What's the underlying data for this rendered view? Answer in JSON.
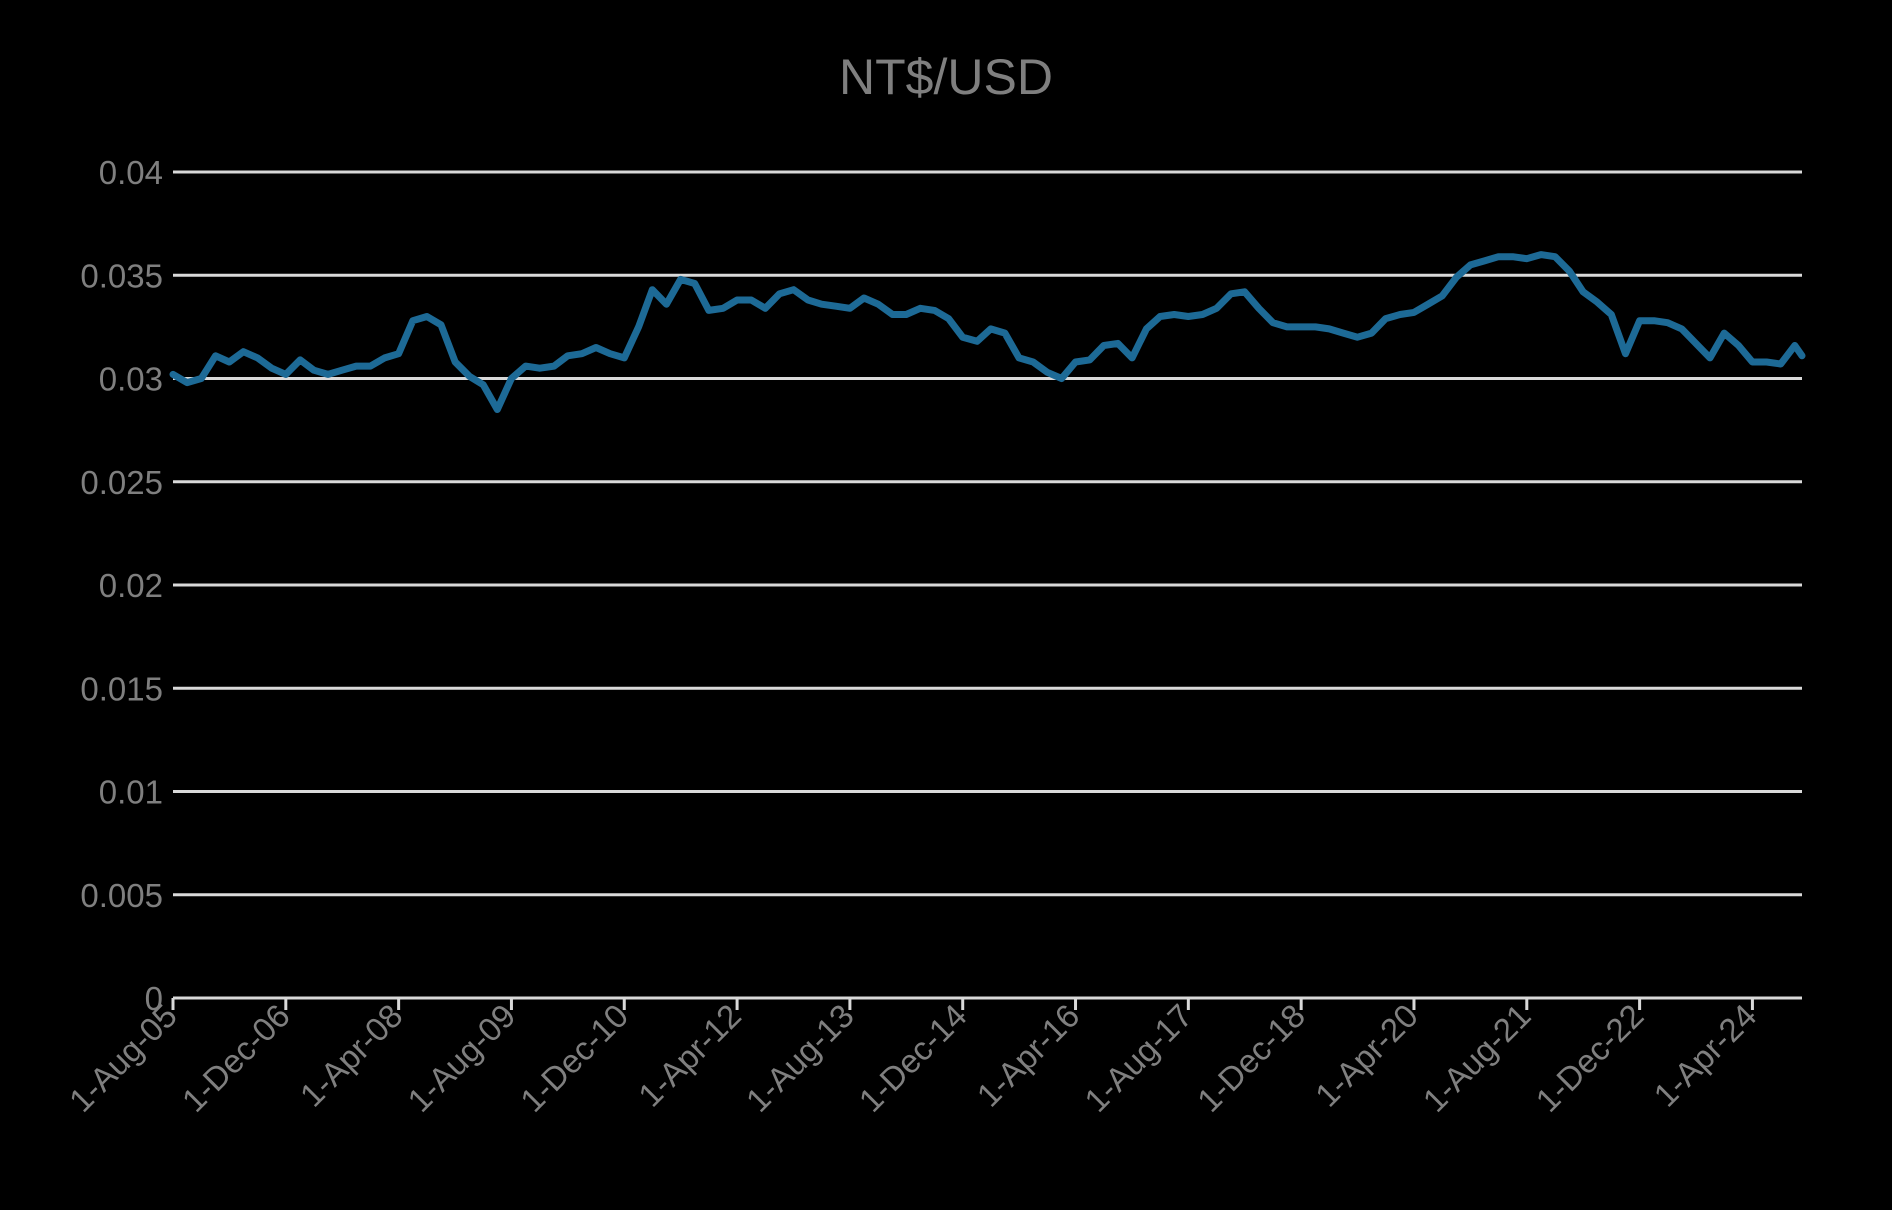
{
  "chart_data": {
    "type": "line",
    "title": "NT$/USD",
    "xlabel": "",
    "ylabel": "",
    "ylim": [
      0,
      0.04
    ],
    "x_range": [
      "2005-08-01",
      "2024-11-01"
    ],
    "grid": true,
    "legend": "none",
    "colors": {
      "background": "#000000",
      "line": "#1d6a96",
      "grid": "#d9d9d9",
      "axis": "#d9d9d9",
      "text": "#7f7f7f"
    },
    "y_ticks": [
      {
        "value": 0,
        "label": "0"
      },
      {
        "value": 0.005,
        "label": "0.005"
      },
      {
        "value": 0.01,
        "label": "0.01"
      },
      {
        "value": 0.015,
        "label": "0.015"
      },
      {
        "value": 0.02,
        "label": "0.02"
      },
      {
        "value": 0.025,
        "label": "0.025"
      },
      {
        "value": 0.03,
        "label": "0.03"
      },
      {
        "value": 0.035,
        "label": "0.035"
      },
      {
        "value": 0.04,
        "label": "0.04"
      }
    ],
    "x_ticks": [
      {
        "value": "2005-08-01",
        "label": "1-Aug-05"
      },
      {
        "value": "2006-12-01",
        "label": "1-Dec-06"
      },
      {
        "value": "2008-04-01",
        "label": "1-Apr-08"
      },
      {
        "value": "2009-08-01",
        "label": "1-Aug-09"
      },
      {
        "value": "2010-12-01",
        "label": "1-Dec-10"
      },
      {
        "value": "2012-04-01",
        "label": "1-Apr-12"
      },
      {
        "value": "2013-08-01",
        "label": "1-Aug-13"
      },
      {
        "value": "2014-12-01",
        "label": "1-Dec-14"
      },
      {
        "value": "2016-04-01",
        "label": "1-Apr-16"
      },
      {
        "value": "2017-08-01",
        "label": "1-Aug-17"
      },
      {
        "value": "2018-12-01",
        "label": "1-Dec-18"
      },
      {
        "value": "2020-04-01",
        "label": "1-Apr-20"
      },
      {
        "value": "2021-08-01",
        "label": "1-Aug-21"
      },
      {
        "value": "2022-12-01",
        "label": "1-Dec-22"
      },
      {
        "value": "2024-04-01",
        "label": "1-Apr-24"
      }
    ],
    "series": [
      {
        "points": [
          [
            "2005-08-01",
            0.0302
          ],
          [
            "2005-10-01",
            0.0298
          ],
          [
            "2005-12-01",
            0.03
          ],
          [
            "2006-02-01",
            0.0311
          ],
          [
            "2006-04-01",
            0.0308
          ],
          [
            "2006-06-01",
            0.0313
          ],
          [
            "2006-08-01",
            0.031
          ],
          [
            "2006-10-01",
            0.0305
          ],
          [
            "2006-12-01",
            0.0302
          ],
          [
            "2007-02-01",
            0.0309
          ],
          [
            "2007-04-01",
            0.0304
          ],
          [
            "2007-06-01",
            0.0302
          ],
          [
            "2007-08-01",
            0.0304
          ],
          [
            "2007-10-01",
            0.0306
          ],
          [
            "2007-12-01",
            0.0306
          ],
          [
            "2008-02-01",
            0.031
          ],
          [
            "2008-04-01",
            0.0312
          ],
          [
            "2008-06-01",
            0.0328
          ],
          [
            "2008-08-01",
            0.033
          ],
          [
            "2008-10-01",
            0.0326
          ],
          [
            "2008-12-01",
            0.0308
          ],
          [
            "2009-02-01",
            0.0301
          ],
          [
            "2009-04-01",
            0.0297
          ],
          [
            "2009-06-01",
            0.0285
          ],
          [
            "2009-08-01",
            0.03
          ],
          [
            "2009-10-01",
            0.0306
          ],
          [
            "2009-12-01",
            0.0305
          ],
          [
            "2010-02-01",
            0.0306
          ],
          [
            "2010-04-01",
            0.0311
          ],
          [
            "2010-06-01",
            0.0312
          ],
          [
            "2010-08-01",
            0.0315
          ],
          [
            "2010-10-01",
            0.0312
          ],
          [
            "2010-12-01",
            0.031
          ],
          [
            "2011-02-01",
            0.0325
          ],
          [
            "2011-04-01",
            0.0343
          ],
          [
            "2011-06-01",
            0.0336
          ],
          [
            "2011-08-01",
            0.0348
          ],
          [
            "2011-10-01",
            0.0346
          ],
          [
            "2011-12-01",
            0.0333
          ],
          [
            "2012-02-01",
            0.0334
          ],
          [
            "2012-04-01",
            0.0338
          ],
          [
            "2012-06-01",
            0.0338
          ],
          [
            "2012-08-01",
            0.0334
          ],
          [
            "2012-10-01",
            0.0341
          ],
          [
            "2012-12-01",
            0.0343
          ],
          [
            "2013-02-01",
            0.0338
          ],
          [
            "2013-04-01",
            0.0336
          ],
          [
            "2013-06-01",
            0.0335
          ],
          [
            "2013-08-01",
            0.0334
          ],
          [
            "2013-10-01",
            0.0339
          ],
          [
            "2013-12-01",
            0.0336
          ],
          [
            "2014-02-01",
            0.0331
          ],
          [
            "2014-04-01",
            0.0331
          ],
          [
            "2014-06-01",
            0.0334
          ],
          [
            "2014-08-01",
            0.0333
          ],
          [
            "2014-10-01",
            0.0329
          ],
          [
            "2014-12-01",
            0.032
          ],
          [
            "2015-02-01",
            0.0318
          ],
          [
            "2015-04-01",
            0.0324
          ],
          [
            "2015-06-01",
            0.0322
          ],
          [
            "2015-08-01",
            0.031
          ],
          [
            "2015-10-01",
            0.0308
          ],
          [
            "2015-12-01",
            0.0303
          ],
          [
            "2016-02-01",
            0.03
          ],
          [
            "2016-04-01",
            0.0308
          ],
          [
            "2016-06-01",
            0.0309
          ],
          [
            "2016-08-01",
            0.0316
          ],
          [
            "2016-10-01",
            0.0317
          ],
          [
            "2016-12-01",
            0.031
          ],
          [
            "2017-02-01",
            0.0324
          ],
          [
            "2017-04-01",
            0.033
          ],
          [
            "2017-06-01",
            0.0331
          ],
          [
            "2017-08-01",
            0.033
          ],
          [
            "2017-10-01",
            0.0331
          ],
          [
            "2017-12-01",
            0.0334
          ],
          [
            "2018-02-01",
            0.0341
          ],
          [
            "2018-04-01",
            0.0342
          ],
          [
            "2018-06-01",
            0.0334
          ],
          [
            "2018-08-01",
            0.0327
          ],
          [
            "2018-10-01",
            0.0325
          ],
          [
            "2018-12-01",
            0.0325
          ],
          [
            "2019-02-01",
            0.0325
          ],
          [
            "2019-04-01",
            0.0324
          ],
          [
            "2019-06-01",
            0.0322
          ],
          [
            "2019-08-01",
            0.032
          ],
          [
            "2019-10-01",
            0.0322
          ],
          [
            "2019-12-01",
            0.0329
          ],
          [
            "2020-02-01",
            0.0331
          ],
          [
            "2020-04-01",
            0.0332
          ],
          [
            "2020-06-01",
            0.0336
          ],
          [
            "2020-08-01",
            0.034
          ],
          [
            "2020-10-01",
            0.0349
          ],
          [
            "2020-12-01",
            0.0355
          ],
          [
            "2021-02-01",
            0.0357
          ],
          [
            "2021-04-01",
            0.0359
          ],
          [
            "2021-06-01",
            0.0359
          ],
          [
            "2021-08-01",
            0.0358
          ],
          [
            "2021-10-01",
            0.036
          ],
          [
            "2021-12-01",
            0.0359
          ],
          [
            "2022-02-01",
            0.0352
          ],
          [
            "2022-04-01",
            0.0342
          ],
          [
            "2022-06-01",
            0.0337
          ],
          [
            "2022-08-01",
            0.0331
          ],
          [
            "2022-10-01",
            0.0312
          ],
          [
            "2022-12-01",
            0.0328
          ],
          [
            "2023-02-01",
            0.0328
          ],
          [
            "2023-04-01",
            0.0327
          ],
          [
            "2023-06-01",
            0.0324
          ],
          [
            "2023-08-01",
            0.0317
          ],
          [
            "2023-10-01",
            0.031
          ],
          [
            "2023-12-01",
            0.0322
          ],
          [
            "2024-02-01",
            0.0316
          ],
          [
            "2024-04-01",
            0.0308
          ],
          [
            "2024-06-01",
            0.0308
          ],
          [
            "2024-08-01",
            0.0307
          ],
          [
            "2024-10-01",
            0.0316
          ],
          [
            "2024-11-01",
            0.0311
          ]
        ]
      }
    ]
  }
}
